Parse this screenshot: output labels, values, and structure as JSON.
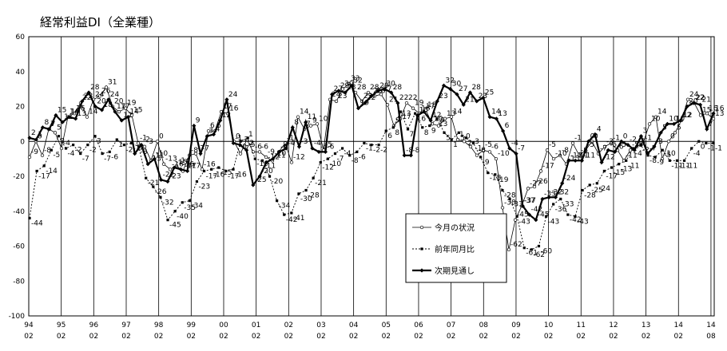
{
  "chart_data": {
    "type": "line",
    "title": "経常利益DI（全業種）",
    "ylim": [
      -100,
      60
    ],
    "yticks": [
      60,
      40,
      20,
      0,
      -20,
      -40,
      -60,
      -80,
      -100
    ],
    "x_year_labels": [
      "94",
      "95",
      "96",
      "97",
      "98",
      "99",
      "00",
      "01",
      "02",
      "03",
      "04",
      "05",
      "06",
      "07",
      "08",
      "09",
      "10",
      "11",
      "12",
      "13",
      "14",
      "14"
    ],
    "x_month_labels": [
      "02",
      "02",
      "02",
      "02",
      "02",
      "02",
      "02",
      "02",
      "02",
      "02",
      "02",
      "02",
      "02",
      "02",
      "02",
      "02",
      "02",
      "02",
      "02",
      "02",
      "02",
      "08"
    ],
    "x_end_label": [
      "14",
      "08"
    ],
    "grid": "vertical year separators",
    "legend_position": "lower-center",
    "series": [
      {
        "name": "今月の状況",
        "style": "open-circle",
        "values": [
          -9,
          0,
          -8,
          7,
          5,
          -4,
          14,
          16,
          22,
          14,
          24,
          26,
          31,
          20,
          17,
          19,
          15,
          -1,
          -3,
          -11,
          0,
          -13,
          -16,
          -14,
          -17,
          -8,
          -7,
          -16,
          6,
          6,
          17,
          16,
          0,
          -7,
          1,
          -6,
          -6,
          -9,
          -11,
          -6,
          -1,
          -12,
          14,
          7,
          9,
          10,
          -5,
          24,
          23,
          30,
          33,
          28,
          23,
          28,
          26,
          27,
          21,
          9,
          13,
          22,
          19,
          16,
          18,
          10,
          9,
          13,
          14,
          1,
          0,
          -3,
          -8,
          -5,
          -6,
          -10,
          -38,
          -62,
          -45,
          -37,
          -27,
          -26,
          -17,
          -5,
          -10,
          -8,
          -13,
          -1,
          -8,
          -5,
          0,
          -7,
          -3,
          -1,
          -5,
          -11,
          -5,
          -3,
          -1,
          10,
          14,
          -10,
          0,
          5,
          12,
          24,
          22,
          15,
          16,
          13
        ]
      },
      {
        "name": "前年同月比",
        "style": "filled-square",
        "values": [
          -44,
          -17,
          -14,
          -5,
          3,
          -4,
          -2,
          -7,
          -2,
          3,
          -7,
          -6,
          1,
          -2,
          -1,
          -3,
          -21,
          -26,
          -32,
          -45,
          -40,
          -35,
          -34,
          -23,
          -17,
          -16,
          -15,
          -17,
          -16,
          0,
          2,
          -10,
          -11,
          -20,
          -34,
          -42,
          -41,
          -30,
          -28,
          -21,
          -12,
          -10,
          -7,
          -4,
          -8,
          -6,
          -1,
          -2,
          -2,
          6,
          8,
          17,
          7,
          16,
          8,
          9,
          13,
          5,
          1,
          5,
          2,
          -1,
          -9,
          -18,
          -19,
          -28,
          -33,
          -43,
          -61,
          -62,
          -60,
          -43,
          -36,
          -33,
          -42,
          -43,
          -28,
          -25,
          -24,
          -17,
          -15,
          -13,
          -11,
          -4,
          -2,
          -8,
          -9,
          -5,
          -11,
          -11,
          -11,
          -4,
          0,
          -1,
          -1
        ]
      },
      {
        "name": "次期見通し",
        "style": "bold-diamond",
        "values": [
          2,
          1,
          8,
          7,
          15,
          11,
          14,
          13,
          23,
          28,
          20,
          18,
          24,
          17,
          12,
          14,
          -7,
          -2,
          -13,
          -10,
          -22,
          -23,
          -15,
          -16,
          -17,
          9,
          -7,
          3,
          4,
          12,
          24,
          -1,
          -2,
          -5,
          -25,
          -20,
          -12,
          -10,
          -6,
          -4,
          8,
          -3,
          11,
          -4,
          -6,
          -6,
          27,
          29,
          28,
          32,
          19,
          22,
          26,
          29,
          30,
          28,
          22,
          -8,
          -8,
          15,
          17,
          12,
          23,
          32,
          30,
          27,
          21,
          28,
          23,
          25,
          14,
          13,
          6,
          -4,
          -7,
          -37,
          -42,
          -45,
          -33,
          -32,
          -32,
          -24,
          -11,
          -11,
          -11,
          0,
          4,
          -12,
          -5,
          -6,
          0,
          -2,
          -5,
          3,
          -7,
          -3,
          5,
          10,
          10,
          12,
          20,
          22,
          21,
          7,
          16
        ]
      }
    ]
  }
}
